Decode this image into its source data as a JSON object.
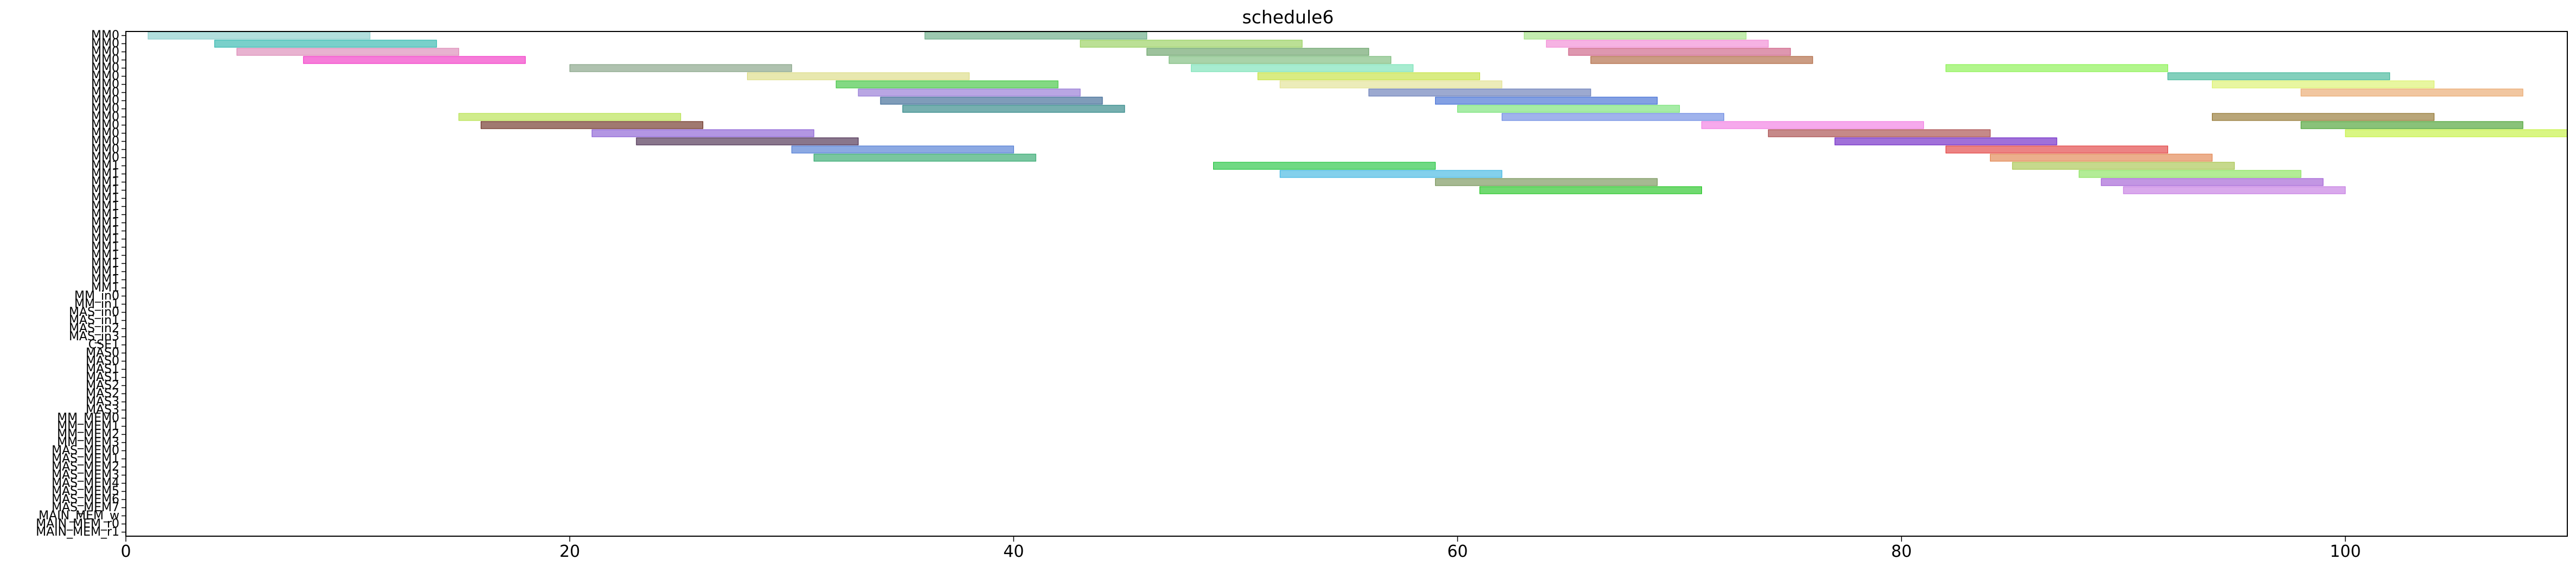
{
  "chart_data": {
    "type": "gantt",
    "title": "schedule6",
    "xlabel": "",
    "ylabel": "",
    "xlim": [
      0,
      110
    ],
    "x_ticks": [
      0,
      20,
      40,
      60,
      80,
      100
    ],
    "grid": false,
    "legend": "none",
    "rows": [
      "MM0",
      "MM0",
      "MM0",
      "MM0",
      "MM0",
      "MM0",
      "MM0",
      "MM0",
      "MM0",
      "MM0",
      "MM0",
      "MM0",
      "MM0",
      "MM0",
      "MM0",
      "MM0",
      "MM1",
      "MM1",
      "MM1",
      "MM1",
      "MM1",
      "MM1",
      "MM1",
      "MM1",
      "MM1",
      "MM1",
      "MM1",
      "MM1",
      "MM1",
      "MM1",
      "MM1",
      "MM1",
      "MM_in0",
      "MM_in1",
      "MAS_in0",
      "MAS_in1",
      "MAS_in2",
      "MAS_in3",
      "CSE1",
      "MAS0",
      "MAS0",
      "MAS1",
      "MAS1",
      "MAS2",
      "MAS2",
      "MAS3",
      "MAS3",
      "MM_MEM0",
      "MM_MEM1",
      "MM_MEM2",
      "MM_MEM3",
      "MAS_MEM0",
      "MAS_MEM1",
      "MAS_MEM2",
      "MAS_MEM3",
      "MAS_MEM4",
      "MAS_MEM5",
      "MAS_MEM6",
      "MAS_MEM7",
      "MAIN_MEM_w",
      "MAIN_MEM_r0",
      "MAIN_MEM_r1"
    ],
    "tasks": [
      {
        "row": 0,
        "start": 1,
        "end": 11,
        "color": "#7fc9c6"
      },
      {
        "row": 0,
        "start": 36,
        "end": 46,
        "color": "#5aa37a"
      },
      {
        "row": 0,
        "start": 63,
        "end": 73,
        "color": "#9be07a"
      },
      {
        "row": 1,
        "start": 4,
        "end": 14,
        "color": "#1fb0a6"
      },
      {
        "row": 1,
        "start": 43,
        "end": 53,
        "color": "#8dcc4f"
      },
      {
        "row": 1,
        "start": 64,
        "end": 74,
        "color": "#f07fd0"
      },
      {
        "row": 2,
        "start": 5,
        "end": 15,
        "color": "#d97fb0"
      },
      {
        "row": 2,
        "start": 46,
        "end": 56,
        "color": "#5c9a5a"
      },
      {
        "row": 2,
        "start": 65,
        "end": 75,
        "color": "#c8517a"
      },
      {
        "row": 3,
        "start": 8,
        "end": 18,
        "color": "#f025c0"
      },
      {
        "row": 3,
        "start": 47,
        "end": 57,
        "color": "#6fb56f"
      },
      {
        "row": 3,
        "start": 66,
        "end": 76,
        "color": "#a85a30"
      },
      {
        "row": 4,
        "start": 20,
        "end": 30,
        "color": "#7a9a7a"
      },
      {
        "row": 4,
        "start": 48,
        "end": 58,
        "color": "#6de0b0"
      },
      {
        "row": 4,
        "start": 82,
        "end": 92,
        "color": "#7ef040"
      },
      {
        "row": 5,
        "start": 28,
        "end": 38,
        "color": "#d8d87a"
      },
      {
        "row": 5,
        "start": 51,
        "end": 61,
        "color": "#c0e030"
      },
      {
        "row": 5,
        "start": 92,
        "end": 102,
        "color": "#30b090"
      },
      {
        "row": 6,
        "start": 32,
        "end": 42,
        "color": "#30c030"
      },
      {
        "row": 6,
        "start": 52,
        "end": 62,
        "color": "#e0e08a"
      },
      {
        "row": 6,
        "start": 94,
        "end": 104,
        "color": "#d8f060"
      },
      {
        "row": 7,
        "start": 33,
        "end": 43,
        "color": "#8a6ad0"
      },
      {
        "row": 7,
        "start": 56,
        "end": 66,
        "color": "#5a70b0"
      },
      {
        "row": 7,
        "start": 98,
        "end": 108,
        "color": "#e8a060"
      },
      {
        "row": 8,
        "start": 34,
        "end": 44,
        "color": "#2a5a8a"
      },
      {
        "row": 8,
        "start": 59,
        "end": 69,
        "color": "#3060d0"
      },
      {
        "row": 9,
        "start": 35,
        "end": 45,
        "color": "#1a7a7a"
      },
      {
        "row": 9,
        "start": 60,
        "end": 70,
        "color": "#6ae06a"
      },
      {
        "row": 10,
        "start": 15,
        "end": 25,
        "color": "#b0e040"
      },
      {
        "row": 10,
        "start": 62,
        "end": 72,
        "color": "#6080e0"
      },
      {
        "row": 10,
        "start": 94,
        "end": 104,
        "color": "#8a6a20"
      },
      {
        "row": 11,
        "start": 16,
        "end": 26,
        "color": "#602010"
      },
      {
        "row": 11,
        "start": 71,
        "end": 81,
        "color": "#f070e0"
      },
      {
        "row": 11,
        "start": 98,
        "end": 108,
        "color": "#3a9a20"
      },
      {
        "row": 12,
        "start": 21,
        "end": 31,
        "color": "#8050d0"
      },
      {
        "row": 12,
        "start": 74,
        "end": 84,
        "color": "#a03a3a"
      },
      {
        "row": 12,
        "start": 100,
        "end": 110,
        "color": "#c0f030"
      },
      {
        "row": 13,
        "start": 23,
        "end": 33,
        "color": "#3a1a40"
      },
      {
        "row": 13,
        "start": 77,
        "end": 87,
        "color": "#6010c0"
      },
      {
        "row": 14,
        "start": 30,
        "end": 40,
        "color": "#4070d0"
      },
      {
        "row": 14,
        "start": 82,
        "end": 92,
        "color": "#e03030"
      },
      {
        "row": 15,
        "start": 31,
        "end": 41,
        "color": "#20a060"
      },
      {
        "row": 15,
        "start": 84,
        "end": 94,
        "color": "#e07a40"
      },
      {
        "row": 16,
        "start": 49,
        "end": 59,
        "color": "#10c030"
      },
      {
        "row": 16,
        "start": 85,
        "end": 95,
        "color": "#a0c040"
      },
      {
        "row": 17,
        "start": 52,
        "end": 62,
        "color": "#30b0e0"
      },
      {
        "row": 17,
        "start": 88,
        "end": 98,
        "color": "#80e050"
      },
      {
        "row": 18,
        "start": 59,
        "end": 69,
        "color": "#6a8a4a"
      },
      {
        "row": 18,
        "start": 89,
        "end": 99,
        "color": "#9a50d0"
      },
      {
        "row": 19,
        "start": 61,
        "end": 71,
        "color": "#10c010"
      },
      {
        "row": 19,
        "start": 90,
        "end": 100,
        "color": "#c070e0"
      }
    ]
  }
}
